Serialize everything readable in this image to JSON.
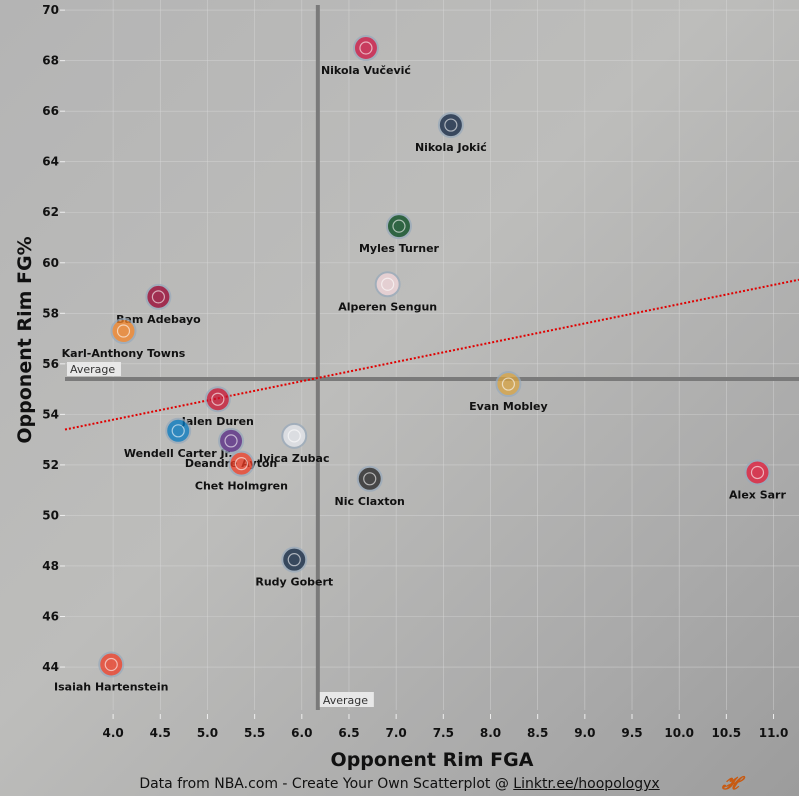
{
  "chart_data": {
    "type": "scatter",
    "xlabel": "Opponent Rim FGA",
    "ylabel": "Opponent Rim FG%",
    "xlim": [
      3.49,
      11.27
    ],
    "ylim": [
      42.3,
      70.4
    ],
    "xticks": [
      "4.0",
      "4.5",
      "5.0",
      "5.5",
      "6.0",
      "6.5",
      "7.0",
      "7.5",
      "8.0",
      "8.5",
      "9.0",
      "9.5",
      "10.0",
      "10.5",
      "11.0"
    ],
    "yticks": [
      "44",
      "46",
      "48",
      "50",
      "52",
      "54",
      "56",
      "58",
      "60",
      "62",
      "64",
      "66",
      "68",
      "70"
    ],
    "grid": true,
    "points": [
      {
        "name": "Nikola Vučević",
        "x": 6.68,
        "y": 68.5,
        "color": "#ce1141"
      },
      {
        "name": "Nikola Jokić",
        "x": 7.58,
        "y": 65.45,
        "color": "#0e2240"
      },
      {
        "name": "Myles Turner",
        "x": 7.03,
        "y": 61.45,
        "color": "#00471b"
      },
      {
        "name": "Alperen Sengun",
        "x": 6.91,
        "y": 59.15,
        "color": "#f2d6da"
      },
      {
        "name": "Bam Adebayo",
        "x": 4.48,
        "y": 58.65,
        "color": "#98002e"
      },
      {
        "name": "Karl-Anthony Towns",
        "x": 4.11,
        "y": 57.3,
        "color": "#f58426"
      },
      {
        "name": "Evan Mobley",
        "x": 8.19,
        "y": 55.2,
        "color": "#d9a441"
      },
      {
        "name": "Jalen Duren",
        "x": 5.11,
        "y": 54.6,
        "color": "#c8102e"
      },
      {
        "name": "Wendell Carter Jr.",
        "x": 4.69,
        "y": 53.35,
        "color": "#0077c0"
      },
      {
        "name": "Deandre Ayton",
        "x": 5.25,
        "y": 52.95,
        "color": "#552583"
      },
      {
        "name": "Ivica Zubac",
        "x": 5.92,
        "y": 53.15,
        "color": "#e6e8ee"
      },
      {
        "name": "Chet Holmgren",
        "x": 5.36,
        "y": 52.05,
        "color": "#ef3b24"
      },
      {
        "name": "Nic Claxton",
        "x": 6.72,
        "y": 51.45,
        "color": "#222222"
      },
      {
        "name": "Alex Sarr",
        "x": 10.83,
        "y": 51.7,
        "color": "#e31837"
      },
      {
        "name": "Rudy Gobert",
        "x": 5.92,
        "y": 48.25,
        "color": "#0c2340"
      },
      {
        "name": "Isaiah Hartenstein",
        "x": 3.98,
        "y": 44.1,
        "color": "#ef3b24"
      }
    ],
    "averages": {
      "x": 6.17,
      "y": 55.4,
      "label": "Average"
    },
    "trendline": {
      "x": [
        3.49,
        11.27
      ],
      "y": [
        53.4,
        59.33
      ],
      "color": "#e00000"
    }
  },
  "footer": {
    "text": "Data from NBA.com - Create Your Own Scatterplot @ ",
    "link": "Linktr.ee/hoopologyx",
    "logo": "H"
  }
}
